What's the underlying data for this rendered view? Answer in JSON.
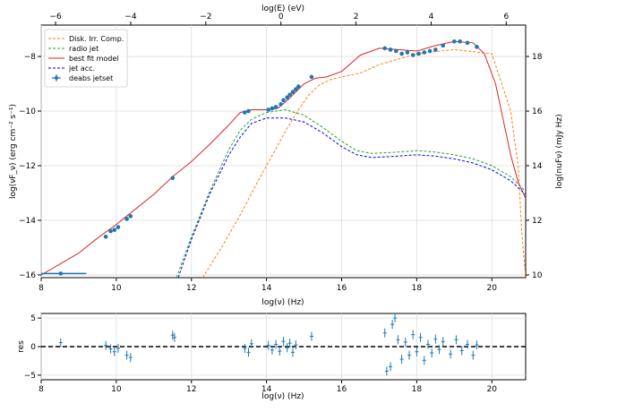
{
  "chart_data": [
    {
      "type": "line",
      "title": "",
      "xlabel": "log(ν)  (Hz)",
      "ylabel": "log(νF_ν)  (erg cm⁻² s⁻¹)",
      "ylabel_right": "log(nuFν) (mJy Hz)",
      "xlabel_top": "log(E) (eV)",
      "xlim": [
        8,
        20.9
      ],
      "ylim": [
        -16.1,
        -6.85
      ],
      "xticks": [
        8,
        10,
        12,
        14,
        16,
        18,
        20
      ],
      "yticks": [
        -16,
        -14,
        -12,
        -10,
        -8
      ],
      "top_ticks": [
        -6,
        -4,
        -2,
        0,
        2,
        4,
        6
      ],
      "right_ticks": [
        10,
        12,
        14,
        16,
        18
      ],
      "grid": true,
      "legend_position": "top-left",
      "series": [
        {
          "name": "Disk. Irr. Comp.",
          "style": "dashed",
          "color": "#ff7f0e",
          "x": [
            12.3,
            12.8,
            13.3,
            13.8,
            14.2,
            14.5,
            14.8,
            15.1,
            15.4,
            15.7,
            16.0,
            16.5,
            17.0,
            18.0,
            19.0,
            20.0,
            20.5,
            20.7,
            20.8,
            20.9
          ],
          "y": [
            -16.1,
            -15.0,
            -13.8,
            -12.5,
            -11.5,
            -10.75,
            -10.05,
            -9.45,
            -9.05,
            -8.85,
            -8.75,
            -8.6,
            -8.3,
            -7.9,
            -7.75,
            -7.9,
            -10.0,
            -12.0,
            -14.5,
            -16.1
          ]
        },
        {
          "name": "radio jet",
          "style": "dashed",
          "color": "#2ca02c",
          "x": [
            11.6,
            12.0,
            12.5,
            13.0,
            13.3,
            13.6,
            14.0,
            14.5,
            15.0,
            15.5,
            16.0,
            16.4,
            16.8,
            17.5,
            18.0,
            18.5,
            19.0,
            19.5,
            20.0,
            20.5,
            20.9
          ],
          "y": [
            -16.1,
            -14.6,
            -12.9,
            -11.4,
            -10.7,
            -10.3,
            -10.05,
            -9.95,
            -10.15,
            -10.6,
            -11.1,
            -11.45,
            -11.55,
            -11.5,
            -11.45,
            -11.5,
            -11.6,
            -11.75,
            -12.0,
            -12.4,
            -12.95
          ]
        },
        {
          "name": "best fit model",
          "style": "solid",
          "color": "#d62728",
          "x": [
            8.0,
            8.5,
            9.0,
            9.5,
            10.0,
            10.5,
            11.0,
            11.5,
            12.0,
            12.5,
            13.0,
            13.3,
            13.6,
            14.0,
            14.3,
            14.6,
            15.0,
            15.3,
            15.6,
            16.0,
            16.5,
            17.0,
            17.5,
            18.0,
            18.5,
            19.0,
            19.5,
            19.8,
            20.1,
            20.3,
            20.5,
            20.7,
            20.9
          ],
          "y": [
            -16.0,
            -15.6,
            -15.2,
            -14.65,
            -14.15,
            -13.6,
            -13.05,
            -12.4,
            -11.85,
            -11.2,
            -10.5,
            -10.05,
            -9.95,
            -9.95,
            -9.9,
            -9.55,
            -9.0,
            -8.8,
            -8.75,
            -8.55,
            -7.95,
            -7.7,
            -7.75,
            -7.8,
            -7.6,
            -7.45,
            -7.5,
            -7.9,
            -9.0,
            -10.3,
            -11.6,
            -12.6,
            -13.2
          ]
        },
        {
          "name": "jet acc.",
          "style": "dashed",
          "color": "#0000ff",
          "x": [
            11.65,
            12.0,
            12.5,
            13.0,
            13.3,
            13.6,
            14.0,
            14.5,
            15.0,
            15.5,
            16.0,
            16.4,
            16.8,
            17.5,
            18.0,
            18.5,
            19.0,
            19.5,
            20.0,
            20.5,
            20.9
          ],
          "y": [
            -16.1,
            -14.7,
            -13.0,
            -11.6,
            -10.95,
            -10.45,
            -10.25,
            -10.25,
            -10.4,
            -10.8,
            -11.3,
            -11.6,
            -11.7,
            -11.65,
            -11.6,
            -11.65,
            -11.75,
            -11.9,
            -12.15,
            -12.55,
            -13.05
          ]
        }
      ],
      "data_points": {
        "name": "deabs jetset",
        "color": "#1f77b4",
        "x": [
          8.52,
          9.72,
          9.85,
          9.95,
          10.05,
          10.28,
          10.38,
          11.5,
          13.42,
          13.52,
          14.05,
          14.15,
          14.25,
          14.38,
          14.45,
          14.55,
          14.62,
          14.7,
          14.78,
          14.85,
          15.2,
          17.15,
          17.3,
          17.45,
          17.6,
          17.75,
          17.9,
          18.05,
          18.2,
          18.35,
          18.5,
          18.7,
          19.0,
          19.15,
          19.35,
          19.6
        ],
        "y": [
          -15.95,
          -14.6,
          -14.4,
          -14.35,
          -14.25,
          -13.95,
          -13.85,
          -12.45,
          -10.05,
          -10.0,
          -9.95,
          -9.9,
          -9.85,
          -9.75,
          -9.6,
          -9.5,
          -9.4,
          -9.3,
          -9.2,
          -9.1,
          -8.75,
          -7.7,
          -7.75,
          -7.8,
          -7.9,
          -7.85,
          -7.95,
          -7.9,
          -7.85,
          -7.8,
          -7.75,
          -7.6,
          -7.45,
          -7.45,
          -7.5,
          -7.65
        ]
      }
    },
    {
      "type": "scatter",
      "xlabel": "log(ν)  (Hz)",
      "ylabel": "res",
      "xlim": [
        8,
        20.9
      ],
      "ylim": [
        -5.8,
        5.8
      ],
      "xticks": [
        8,
        10,
        12,
        14,
        16,
        18,
        20
      ],
      "yticks": [
        -5,
        0,
        5
      ],
      "reference_line": 0,
      "color": "#1f77b4",
      "x": [
        8.52,
        9.72,
        9.85,
        9.95,
        10.05,
        10.28,
        10.38,
        11.5,
        11.55,
        13.42,
        13.52,
        13.6,
        14.05,
        14.15,
        14.25,
        14.35,
        14.45,
        14.55,
        14.62,
        14.7,
        14.78,
        15.2,
        17.15,
        17.2,
        17.3,
        17.35,
        17.42,
        17.5,
        17.6,
        17.7,
        17.8,
        17.9,
        18.0,
        18.1,
        18.2,
        18.3,
        18.4,
        18.5,
        18.6,
        18.7,
        18.9,
        19.05,
        19.2,
        19.35,
        19.5,
        19.6
      ],
      "y": [
        0.7,
        0.2,
        -0.4,
        -0.9,
        -0.3,
        -1.5,
        -1.9,
        2.0,
        1.6,
        -0.3,
        -1.0,
        0.5,
        0.2,
        -0.6,
        0.4,
        -0.8,
        0.9,
        -0.2,
        0.6,
        -1.0,
        0.3,
        1.8,
        2.4,
        -4.3,
        -3.5,
        3.9,
        5.0,
        1.2,
        -2.2,
        0.8,
        -1.5,
        2.1,
        -0.9,
        1.6,
        -2.4,
        0.4,
        -1.1,
        1.3,
        -0.5,
        0.9,
        -1.3,
        1.2,
        -0.7,
        0.4,
        -1.5,
        0.3
      ]
    }
  ]
}
